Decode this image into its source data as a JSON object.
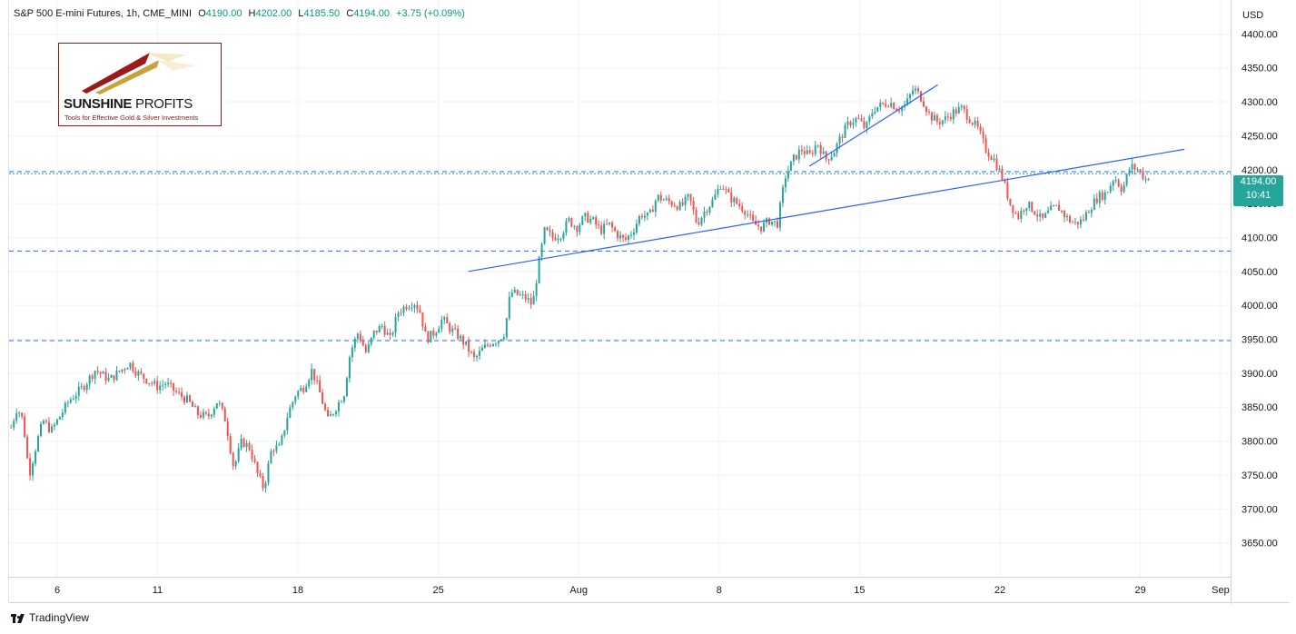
{
  "header": {
    "title": "S&P 500 E-mini Futures, 1h, CME_MINI",
    "o_label": "O",
    "o": "4190.00",
    "h_label": "H",
    "h": "4202.00",
    "l_label": "L",
    "l": "4185.50",
    "c_label": "C",
    "c": "4194.00",
    "change": "+3.75 (+0.09%)"
  },
  "logo": {
    "title_bold": "SUNSHINE",
    "title_light": "PROFITS",
    "tagline": "Tools for Effective Gold & Silver Investments"
  },
  "branding": "TradingView",
  "price_tag": {
    "price": "4194.00",
    "countdown": "10:41"
  },
  "colors": {
    "up": "#26a69a",
    "down": "#ef5350",
    "trendline": "#2962ff",
    "level": "#2962ff",
    "tag": "#26a69a"
  },
  "chart_data": {
    "type": "candlestick",
    "currency_label": "USD",
    "ylim": [
      3600,
      4450
    ],
    "y_ticks": [
      3650,
      3700,
      3750,
      3800,
      3850,
      3900,
      3950,
      4000,
      4050,
      4100,
      4150,
      4200,
      4250,
      4300,
      4350,
      4400
    ],
    "y_tick_labels": [
      "3650.00",
      "3700.00",
      "3750.00",
      "3800.00",
      "3850.00",
      "3900.00",
      "3950.00",
      "4000.00",
      "4050.00",
      "4100.00",
      "4150.00",
      "4200.00",
      "4250.00",
      "4300.00",
      "4350.00",
      "4400.00"
    ],
    "x_ticks": [
      {
        "label": "6",
        "day": 6
      },
      {
        "label": "11",
        "day": 11
      },
      {
        "label": "18",
        "day": 18
      },
      {
        "label": "25",
        "day": 25
      },
      {
        "label": "Aug",
        "day": 32
      },
      {
        "label": "8",
        "day": 39
      },
      {
        "label": "15",
        "day": 46
      },
      {
        "label": "22",
        "day": 53
      },
      {
        "label": "29",
        "day": 60
      },
      {
        "label": "Sep",
        "day": 64
      }
    ],
    "x_range_days": [
      3.6,
      64.5
    ],
    "grid": true,
    "close_path": [
      [
        3.7,
        3820
      ],
      [
        4.0,
        3850
      ],
      [
        4.3,
        3830
      ],
      [
        4.6,
        3750
      ],
      [
        5.0,
        3800
      ],
      [
        5.3,
        3830
      ],
      [
        5.7,
        3815
      ],
      [
        6.0,
        3830
      ],
      [
        6.6,
        3860
      ],
      [
        7.3,
        3880
      ],
      [
        7.9,
        3905
      ],
      [
        8.6,
        3890
      ],
      [
        9.0,
        3900
      ],
      [
        9.6,
        3915
      ],
      [
        10.0,
        3900
      ],
      [
        10.5,
        3890
      ],
      [
        11.0,
        3880
      ],
      [
        11.4,
        3885
      ],
      [
        12.0,
        3870
      ],
      [
        12.5,
        3860
      ],
      [
        13.0,
        3840
      ],
      [
        13.5,
        3835
      ],
      [
        14.0,
        3860
      ],
      [
        14.4,
        3830
      ],
      [
        14.8,
        3760
      ],
      [
        15.2,
        3800
      ],
      [
        15.6,
        3790
      ],
      [
        16.0,
        3750
      ],
      [
        16.3,
        3730
      ],
      [
        16.7,
        3790
      ],
      [
        17.1,
        3790
      ],
      [
        17.5,
        3840
      ],
      [
        17.9,
        3870
      ],
      [
        18.3,
        3880
      ],
      [
        18.7,
        3905
      ],
      [
        19.1,
        3870
      ],
      [
        19.5,
        3830
      ],
      [
        19.9,
        3850
      ],
      [
        20.3,
        3870
      ],
      [
        20.6,
        3930
      ],
      [
        21.0,
        3960
      ],
      [
        21.4,
        3930
      ],
      [
        21.8,
        3960
      ],
      [
        22.2,
        3970
      ],
      [
        22.6,
        3950
      ],
      [
        23.0,
        3990
      ],
      [
        23.4,
        4000
      ],
      [
        23.8,
        4005
      ],
      [
        24.1,
        3990
      ],
      [
        24.4,
        3950
      ],
      [
        24.8,
        3960
      ],
      [
        25.2,
        3980
      ],
      [
        25.6,
        3965
      ],
      [
        26.0,
        3955
      ],
      [
        26.4,
        3940
      ],
      [
        26.8,
        3920
      ],
      [
        27.2,
        3935
      ],
      [
        27.6,
        3945
      ],
      [
        28.0,
        3950
      ],
      [
        28.3,
        3960
      ],
      [
        28.6,
        4020
      ],
      [
        29.0,
        4015
      ],
      [
        29.4,
        4010
      ],
      [
        29.7,
        4000
      ],
      [
        30.0,
        4060
      ],
      [
        30.3,
        4110
      ],
      [
        30.7,
        4100
      ],
      [
        31.1,
        4105
      ],
      [
        31.5,
        4125
      ],
      [
        31.9,
        4115
      ],
      [
        32.3,
        4130
      ],
      [
        32.7,
        4125
      ],
      [
        33.1,
        4110
      ],
      [
        33.5,
        4120
      ],
      [
        33.9,
        4105
      ],
      [
        34.3,
        4095
      ],
      [
        34.7,
        4110
      ],
      [
        35.1,
        4135
      ],
      [
        35.5,
        4130
      ],
      [
        35.9,
        4160
      ],
      [
        36.3,
        4155
      ],
      [
        36.7,
        4150
      ],
      [
        37.1,
        4145
      ],
      [
        37.5,
        4160
      ],
      [
        37.9,
        4120
      ],
      [
        38.3,
        4140
      ],
      [
        38.7,
        4155
      ],
      [
        39.1,
        4180
      ],
      [
        39.5,
        4160
      ],
      [
        39.9,
        4150
      ],
      [
        40.3,
        4140
      ],
      [
        40.7,
        4120
      ],
      [
        41.1,
        4115
      ],
      [
        41.5,
        4125
      ],
      [
        41.9,
        4120
      ],
      [
        42.3,
        4190
      ],
      [
        42.7,
        4215
      ],
      [
        43.1,
        4230
      ],
      [
        43.5,
        4220
      ],
      [
        43.9,
        4240
      ],
      [
        44.3,
        4215
      ],
      [
        44.7,
        4225
      ],
      [
        45.1,
        4250
      ],
      [
        45.5,
        4270
      ],
      [
        45.9,
        4275
      ],
      [
        46.3,
        4260
      ],
      [
        46.7,
        4290
      ],
      [
        47.1,
        4295
      ],
      [
        47.5,
        4300
      ],
      [
        47.9,
        4290
      ],
      [
        48.3,
        4295
      ],
      [
        48.7,
        4320
      ],
      [
        49.1,
        4305
      ],
      [
        49.5,
        4280
      ],
      [
        49.9,
        4270
      ],
      [
        50.3,
        4275
      ],
      [
        50.7,
        4285
      ],
      [
        51.1,
        4290
      ],
      [
        51.5,
        4275
      ],
      [
        51.9,
        4260
      ],
      [
        52.3,
        4230
      ],
      [
        52.7,
        4215
      ],
      [
        53.1,
        4190
      ],
      [
        53.5,
        4150
      ],
      [
        53.9,
        4130
      ],
      [
        54.3,
        4150
      ],
      [
        54.7,
        4140
      ],
      [
        55.1,
        4125
      ],
      [
        55.5,
        4140
      ],
      [
        55.9,
        4145
      ],
      [
        56.3,
        4130
      ],
      [
        56.7,
        4120
      ],
      [
        57.1,
        4125
      ],
      [
        57.5,
        4145
      ],
      [
        57.9,
        4160
      ],
      [
        58.3,
        4165
      ],
      [
        58.7,
        4190
      ],
      [
        59.1,
        4170
      ],
      [
        59.5,
        4205
      ],
      [
        59.9,
        4200
      ],
      [
        60.3,
        4185
      ],
      [
        60.5,
        4194
      ]
    ],
    "last_close": 4194.0,
    "horizontal_levels": [
      4197,
      4080,
      3948
    ],
    "trendlines": [
      {
        "from": [
          26.5,
          4050
        ],
        "to": [
          62.2,
          4230
        ]
      },
      {
        "from": [
          43.5,
          4205
        ],
        "to": [
          49.9,
          4325
        ]
      }
    ]
  }
}
